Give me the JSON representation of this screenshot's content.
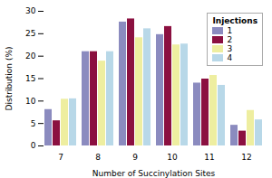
{
  "chart_data": {
    "type": "bar",
    "title": "",
    "xlabel": "Number of Succinylation Sites",
    "ylabel": "Distribution (%)",
    "categories": [
      7,
      8,
      9,
      10,
      11,
      12
    ],
    "series": [
      {
        "name": "1",
        "color": "#8b8bbf",
        "values": [
          8.1,
          21.0,
          27.6,
          24.8,
          14.0,
          4.6
        ]
      },
      {
        "name": "2",
        "color": "#8b1040",
        "values": [
          5.6,
          21.0,
          28.3,
          26.6,
          14.9,
          3.3
        ]
      },
      {
        "name": "3",
        "color": "#eeeea0",
        "values": [
          10.4,
          18.9,
          24.1,
          22.5,
          15.7,
          7.9
        ]
      },
      {
        "name": "4",
        "color": "#b8d8e8",
        "values": [
          10.5,
          21.0,
          26.1,
          22.7,
          13.5,
          5.8
        ]
      }
    ],
    "ylim": [
      0,
      30
    ],
    "yticks": [
      0,
      5,
      10,
      15,
      20,
      25,
      30
    ],
    "grid": false,
    "legend": "upper right",
    "legend_title": "Injections"
  }
}
